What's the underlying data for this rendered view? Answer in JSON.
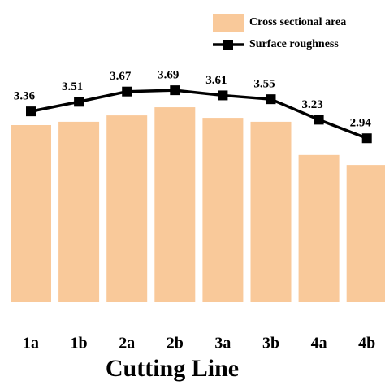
{
  "chart_data": {
    "type": "bar",
    "x_label": "Cutting Line",
    "categories": [
      "1a",
      "1b",
      "2a",
      "2b",
      "3a",
      "3b",
      "4a",
      "4b"
    ],
    "ylim": [
      0,
      100
    ],
    "y2lim": [
      0.38,
      5.1
    ],
    "series": [
      {
        "name": "Cross sectional area",
        "color": "#f9c99a",
        "values": [
          58.6,
          59.7,
          61.8,
          64.5,
          61.0,
          59.7,
          48.7,
          45.4
        ]
      },
      {
        "name": "Surface roughness",
        "color": "#000000",
        "axis": "y2",
        "values": [
          3.36,
          3.51,
          3.67,
          3.69,
          3.61,
          3.55,
          3.23,
          2.94
        ]
      }
    ]
  }
}
